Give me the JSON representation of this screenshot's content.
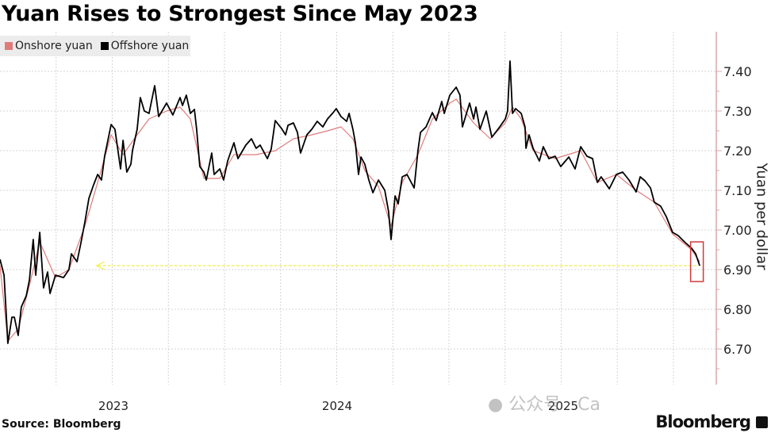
{
  "chart_data": {
    "type": "line",
    "title": "Yuan Rises to Strongest Since May 2023",
    "ylabel": "Yuan per dollar",
    "xlabel": "",
    "x_tick_labels": [
      "2023",
      "2024",
      "2025"
    ],
    "y_tick_labels": [
      "7.40",
      "7.30",
      "7.20",
      "7.10",
      "7.00",
      "6.90",
      "6.80",
      "6.70"
    ],
    "y_ticks": [
      7.4,
      7.3,
      7.2,
      7.1,
      7.0,
      6.9,
      6.8,
      6.7
    ],
    "ylim": [
      6.62,
      7.5
    ],
    "xlim": [
      2023.0,
      2026.18
    ],
    "y_axis_side": "right",
    "grid": true,
    "legend_position": "top-left",
    "colors": {
      "onshore": "#e07b7b",
      "offshore": "#000000",
      "reference_arrow": "#f2ef6a",
      "highlight_box": "#d23b3b",
      "axis": "#d9a8a8"
    },
    "annotations": {
      "reference_level": 6.91,
      "reference_from": 2023.43,
      "highlight_box_from": 2026.08,
      "highlight_box_range": [
        6.87,
        6.97
      ]
    },
    "series": [
      {
        "name": "Onshore yuan",
        "points": [
          [
            2023.0,
            6.91
          ],
          [
            2023.035,
            6.72
          ],
          [
            2023.081,
            6.75
          ],
          [
            2023.131,
            6.86
          ],
          [
            2023.177,
            6.97
          ],
          [
            2023.247,
            6.88
          ],
          [
            2023.307,
            6.9
          ],
          [
            2023.378,
            7.01
          ],
          [
            2023.435,
            7.12
          ],
          [
            2023.495,
            7.24
          ],
          [
            2023.548,
            7.19
          ],
          [
            2023.611,
            7.24
          ],
          [
            2023.664,
            7.28
          ],
          [
            2023.742,
            7.3
          ],
          [
            2023.802,
            7.31
          ],
          [
            2023.848,
            7.28
          ],
          [
            2023.908,
            7.13
          ],
          [
            2023.979,
            7.13
          ],
          [
            2024.042,
            7.19
          ],
          [
            2024.141,
            7.19
          ],
          [
            2024.226,
            7.2
          ],
          [
            2024.307,
            7.23
          ],
          [
            2024.389,
            7.24
          ],
          [
            2024.459,
            7.25
          ],
          [
            2024.519,
            7.26
          ],
          [
            2024.572,
            7.23
          ],
          [
            2024.625,
            7.15
          ],
          [
            2024.686,
            7.11
          ],
          [
            2024.742,
            7.01
          ],
          [
            2024.792,
            7.12
          ],
          [
            2024.862,
            7.19
          ],
          [
            2024.926,
            7.28
          ],
          [
            2025.004,
            7.32
          ],
          [
            2025.032,
            7.33
          ],
          [
            2025.11,
            7.27
          ],
          [
            2025.184,
            7.23
          ],
          [
            2025.251,
            7.27
          ],
          [
            2025.283,
            7.31
          ],
          [
            2025.322,
            7.28
          ],
          [
            2025.375,
            7.2
          ],
          [
            2025.473,
            7.18
          ],
          [
            2025.587,
            7.2
          ],
          [
            2025.661,
            7.12
          ],
          [
            2025.746,
            7.14
          ],
          [
            2025.834,
            7.1
          ],
          [
            2025.915,
            7.07
          ],
          [
            2025.996,
            6.99
          ],
          [
            2026.081,
            6.95
          ],
          [
            2026.117,
            6.92
          ]
        ]
      },
      {
        "name": "Offshore yuan",
        "points": [
          [
            2023.0,
            6.926
          ],
          [
            2023.018,
            6.886
          ],
          [
            2023.028,
            6.786
          ],
          [
            2023.035,
            6.714
          ],
          [
            2023.053,
            6.78
          ],
          [
            2023.064,
            6.78
          ],
          [
            2023.081,
            6.734
          ],
          [
            2023.095,
            6.806
          ],
          [
            2023.117,
            6.834
          ],
          [
            2023.131,
            6.874
          ],
          [
            2023.148,
            6.976
          ],
          [
            2023.159,
            6.886
          ],
          [
            2023.177,
            6.994
          ],
          [
            2023.194,
            6.854
          ],
          [
            2023.212,
            6.894
          ],
          [
            2023.223,
            6.84
          ],
          [
            2023.247,
            6.886
          ],
          [
            2023.283,
            6.88
          ],
          [
            2023.307,
            6.9
          ],
          [
            2023.318,
            6.94
          ],
          [
            2023.343,
            6.92
          ],
          [
            2023.36,
            6.966
          ],
          [
            2023.378,
            7.02
          ],
          [
            2023.396,
            7.08
          ],
          [
            2023.417,
            7.114
          ],
          [
            2023.435,
            7.14
          ],
          [
            2023.452,
            7.126
          ],
          [
            2023.466,
            7.186
          ],
          [
            2023.495,
            7.266
          ],
          [
            2023.512,
            7.254
          ],
          [
            2023.537,
            7.154
          ],
          [
            2023.548,
            7.226
          ],
          [
            2023.565,
            7.146
          ],
          [
            2023.583,
            7.166
          ],
          [
            2023.59,
            7.2
          ],
          [
            2023.611,
            7.254
          ],
          [
            2023.625,
            7.334
          ],
          [
            2023.643,
            7.3
          ],
          [
            2023.664,
            7.294
          ],
          [
            2023.689,
            7.364
          ],
          [
            2023.707,
            7.286
          ],
          [
            2023.742,
            7.32
          ],
          [
            2023.77,
            7.29
          ],
          [
            2023.802,
            7.334
          ],
          [
            2023.813,
            7.314
          ],
          [
            2023.83,
            7.34
          ],
          [
            2023.848,
            7.294
          ],
          [
            2023.866,
            7.304
          ],
          [
            2023.876,
            7.254
          ],
          [
            2023.89,
            7.16
          ],
          [
            2023.908,
            7.146
          ],
          [
            2023.919,
            7.126
          ],
          [
            2023.943,
            7.194
          ],
          [
            2023.954,
            7.14
          ],
          [
            2023.979,
            7.154
          ],
          [
            2023.996,
            7.126
          ],
          [
            2024.014,
            7.174
          ],
          [
            2024.042,
            7.22
          ],
          [
            2024.06,
            7.18
          ],
          [
            2024.095,
            7.214
          ],
          [
            2024.12,
            7.23
          ],
          [
            2024.141,
            7.206
          ],
          [
            2024.159,
            7.214
          ],
          [
            2024.191,
            7.18
          ],
          [
            2024.208,
            7.204
          ],
          [
            2024.226,
            7.276
          ],
          [
            2024.254,
            7.256
          ],
          [
            2024.272,
            7.24
          ],
          [
            2024.283,
            7.264
          ],
          [
            2024.307,
            7.27
          ],
          [
            2024.325,
            7.246
          ],
          [
            2024.339,
            7.194
          ],
          [
            2024.367,
            7.24
          ],
          [
            2024.389,
            7.254
          ],
          [
            2024.413,
            7.274
          ],
          [
            2024.438,
            7.26
          ],
          [
            2024.459,
            7.28
          ],
          [
            2024.484,
            7.296
          ],
          [
            2024.498,
            7.306
          ],
          [
            2024.519,
            7.286
          ],
          [
            2024.544,
            7.274
          ],
          [
            2024.555,
            7.294
          ],
          [
            2024.572,
            7.254
          ],
          [
            2024.583,
            7.22
          ],
          [
            2024.597,
            7.14
          ],
          [
            2024.608,
            7.184
          ],
          [
            2024.625,
            7.166
          ],
          [
            2024.643,
            7.126
          ],
          [
            2024.661,
            7.094
          ],
          [
            2024.686,
            7.126
          ],
          [
            2024.714,
            7.1
          ],
          [
            2024.731,
            7.046
          ],
          [
            2024.742,
            6.976
          ],
          [
            2024.76,
            7.086
          ],
          [
            2024.774,
            7.066
          ],
          [
            2024.792,
            7.134
          ],
          [
            2024.813,
            7.14
          ],
          [
            2024.845,
            7.106
          ],
          [
            2024.862,
            7.2
          ],
          [
            2024.873,
            7.246
          ],
          [
            2024.898,
            7.26
          ],
          [
            2024.926,
            7.296
          ],
          [
            2024.943,
            7.276
          ],
          [
            2024.968,
            7.324
          ],
          [
            2024.979,
            7.294
          ],
          [
            2025.004,
            7.34
          ],
          [
            2025.032,
            7.36
          ],
          [
            2025.049,
            7.34
          ],
          [
            2025.06,
            7.26
          ],
          [
            2025.092,
            7.32
          ],
          [
            2025.11,
            7.28
          ],
          [
            2025.12,
            7.31
          ],
          [
            2025.138,
            7.254
          ],
          [
            2025.166,
            7.3
          ],
          [
            2025.191,
            7.234
          ],
          [
            2025.226,
            7.26
          ],
          [
            2025.251,
            7.28
          ],
          [
            2025.261,
            7.3
          ],
          [
            2025.272,
            7.426
          ],
          [
            2025.283,
            7.294
          ],
          [
            2025.297,
            7.306
          ],
          [
            2025.322,
            7.294
          ],
          [
            2025.339,
            7.26
          ],
          [
            2025.343,
            7.206
          ],
          [
            2025.357,
            7.24
          ],
          [
            2025.375,
            7.206
          ],
          [
            2025.403,
            7.174
          ],
          [
            2025.42,
            7.21
          ],
          [
            2025.445,
            7.18
          ],
          [
            2025.473,
            7.186
          ],
          [
            2025.498,
            7.16
          ],
          [
            2025.534,
            7.184
          ],
          [
            2025.562,
            7.154
          ],
          [
            2025.587,
            7.21
          ],
          [
            2025.615,
            7.186
          ],
          [
            2025.64,
            7.18
          ],
          [
            2025.661,
            7.12
          ],
          [
            2025.678,
            7.134
          ],
          [
            2025.714,
            7.104
          ],
          [
            2025.746,
            7.14
          ],
          [
            2025.774,
            7.146
          ],
          [
            2025.802,
            7.126
          ],
          [
            2025.834,
            7.096
          ],
          [
            2025.852,
            7.134
          ],
          [
            2025.873,
            7.124
          ],
          [
            2025.898,
            7.106
          ],
          [
            2025.915,
            7.07
          ],
          [
            2025.943,
            7.06
          ],
          [
            2025.968,
            7.034
          ],
          [
            2025.996,
            6.994
          ],
          [
            2026.021,
            6.986
          ],
          [
            2026.049,
            6.97
          ],
          [
            2026.081,
            6.954
          ],
          [
            2026.099,
            6.94
          ],
          [
            2026.117,
            6.91
          ]
        ]
      }
    ]
  },
  "footer": {
    "source": "Source: Bloomberg",
    "logo": "Bloomberg",
    "watermark": "公众号 · CapitalWatch"
  }
}
